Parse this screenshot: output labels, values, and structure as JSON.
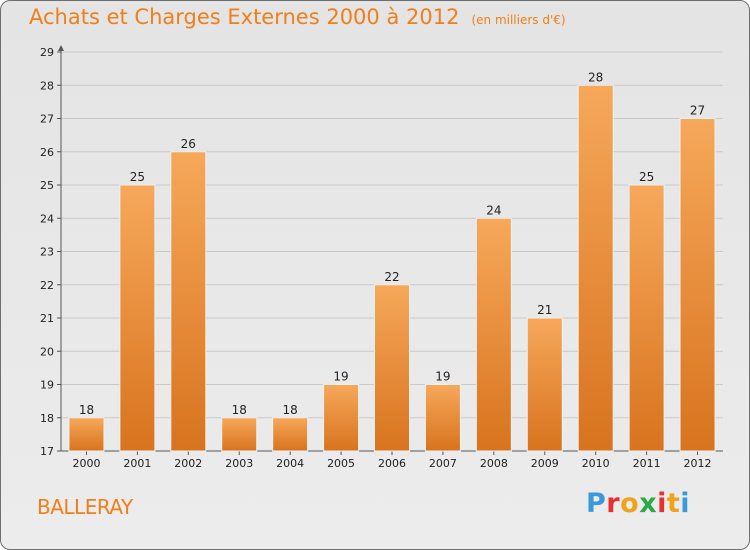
{
  "header": {
    "title": "Achats et Charges Externes 2000 à 2012",
    "unit": "(en milliers d'€)"
  },
  "footer": {
    "town": "BALLERAY",
    "brand_letters": [
      "P",
      "r",
      "o",
      "x",
      "i",
      "t",
      "i"
    ],
    "brand_colors": [
      "#3a9ad9",
      "#e8312e",
      "#f2a11d",
      "#2da84a",
      "#e8312e",
      "#f2a11d",
      "#3a9ad9"
    ]
  },
  "colors": {
    "accent": "#ef7f1a",
    "bar_light": "#f6a85a",
    "bar_dark": "#d8731e"
  },
  "chart_data": {
    "type": "bar",
    "title": "Achats et Charges Externes 2000 à 2012",
    "subtitle": "(en milliers d'€)",
    "categories": [
      "2000",
      "2001",
      "2002",
      "2003",
      "2004",
      "2005",
      "2006",
      "2007",
      "2008",
      "2009",
      "2010",
      "2011",
      "2012"
    ],
    "values": [
      18,
      25,
      26,
      18,
      18,
      19,
      22,
      19,
      24,
      21,
      28,
      25,
      27
    ],
    "ylim": [
      17,
      29
    ],
    "yticks": [
      17,
      18,
      19,
      20,
      21,
      22,
      23,
      24,
      25,
      26,
      27,
      28,
      29
    ],
    "grid": true,
    "xlabel": "",
    "ylabel": ""
  }
}
